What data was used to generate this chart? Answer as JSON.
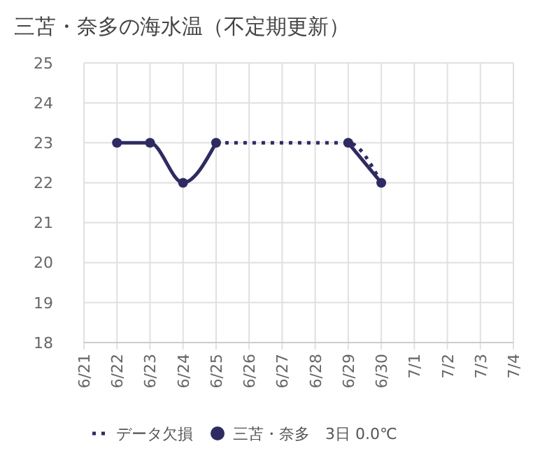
{
  "chart_data": {
    "type": "line",
    "title": "三苫・奈多の海水温（不定期更新）",
    "categories": [
      "6/21",
      "6/22",
      "6/23",
      "6/24",
      "6/25",
      "6/26",
      "6/27",
      "6/28",
      "6/29",
      "6/30",
      "7/1",
      "7/2",
      "7/3",
      "7/4"
    ],
    "series": [
      {
        "name": "データ欠損",
        "color": "#2e2b62",
        "line_style": "dotted",
        "marker": "none",
        "x": [
          "6/25",
          "6/29",
          "6/30"
        ],
        "values": [
          23,
          23,
          22
        ]
      },
      {
        "name": "三苫・奈多　3日 0.0℃",
        "color": "#2e2b62",
        "line_style": "solid",
        "marker": "circle",
        "values": [
          null,
          23,
          23,
          22,
          23,
          null,
          null,
          null,
          23,
          22,
          null,
          null,
          null,
          null
        ]
      }
    ],
    "ylim": [
      18,
      25
    ],
    "yticks": [
      18,
      19,
      20,
      21,
      22,
      23,
      24,
      25
    ],
    "grid": true,
    "legend": "bottom"
  }
}
